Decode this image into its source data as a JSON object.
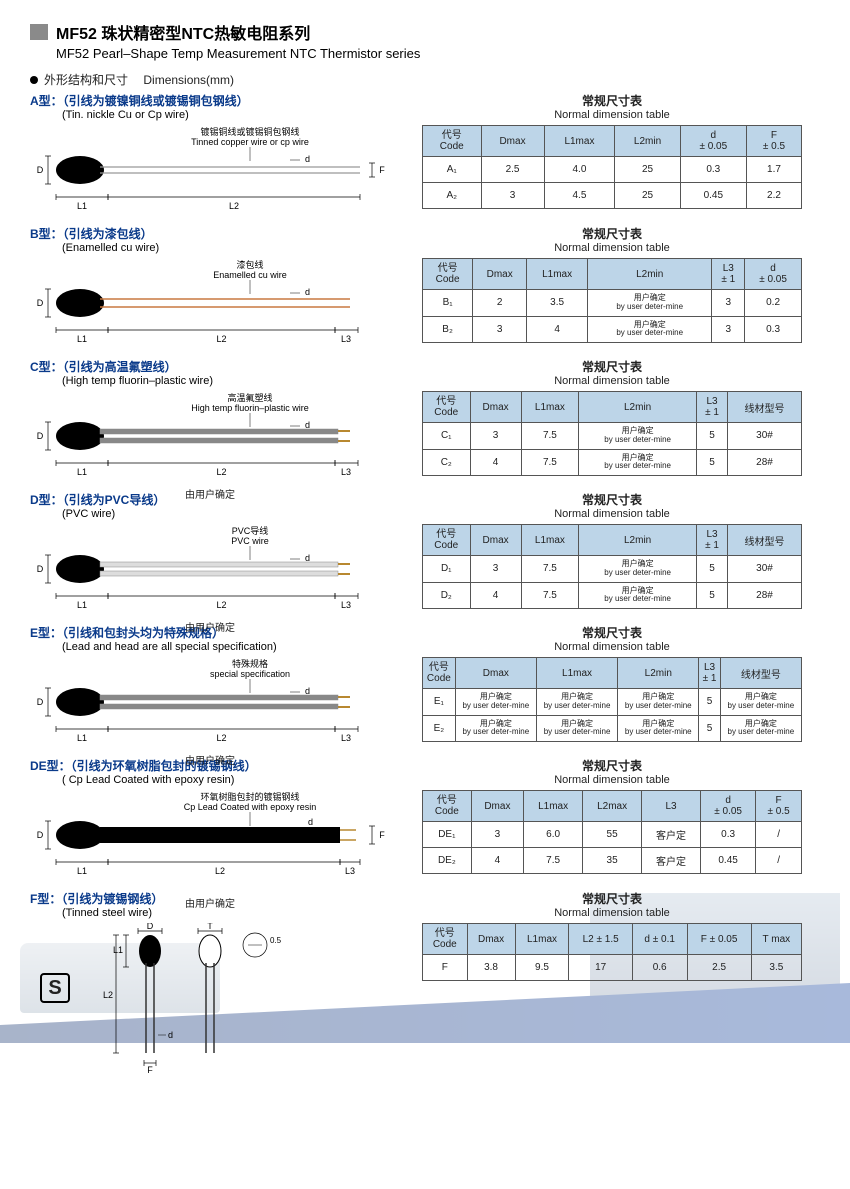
{
  "header": {
    "title_cn": "MF52 珠状精密型NTC热敏电阻系列",
    "title_en": "MF52 Pearl–Shape Temp Measurement NTC Thermistor series",
    "dim_cn": "外形结构和尺寸",
    "dim_en": "Dimensions(mm)"
  },
  "table_title_cn": "常规尺寸表",
  "table_title_en": "Normal dimension table",
  "code_header_cn": "代号",
  "code_header_en": "Code",
  "user_det_cn": "用户确定",
  "user_det_en": "by user deter-mine",
  "by_user_cn": "由用户确定",
  "sections": {
    "A": {
      "type_cn": "A型：（引线为镀镍铜线或镀锡铜包钢线）",
      "type_en": "(Tin. nickle Cu or Cp wire)",
      "wire_cn": "镀锡铜线或镀锡铜包钢线",
      "wire_en": "Tinned copper wire or cp wire",
      "headers": [
        "Dmax",
        "L1max",
        "L2min",
        "d\n± 0.05",
        "F\n± 0.5"
      ],
      "rows": [
        {
          "code": "A₁",
          "v": [
            "2.5",
            "4.0",
            "25",
            "0.3",
            "1.7"
          ]
        },
        {
          "code": "A₂",
          "v": [
            "3",
            "4.5",
            "25",
            "0.45",
            "2.2"
          ]
        }
      ]
    },
    "B": {
      "type_cn": "B型：（引线为漆包线）",
      "type_en": "(Enamelled cu wire)",
      "wire_cn": "漆包线",
      "wire_en": "Enamelled cu wire",
      "headers": [
        "Dmax",
        "L1max",
        "L2min",
        "L3\n± 1",
        "d\n± 0.05"
      ],
      "rows": [
        {
          "code": "B₁",
          "v": [
            "2",
            "3.5",
            "USER",
            "3",
            "0.2"
          ]
        },
        {
          "code": "B₂",
          "v": [
            "3",
            "4",
            "USER",
            "3",
            "0.3"
          ]
        }
      ]
    },
    "C": {
      "type_cn": "C型：（引线为高温氟塑线）",
      "type_en": "(High temp fluorin–plastic wire)",
      "wire_cn": "高温氟塑线",
      "wire_en": "High temp fluorin–plastic wire",
      "headers": [
        "Dmax",
        "L1max",
        "L2min",
        "L3\n± 1",
        "线材型号"
      ],
      "rows": [
        {
          "code": "C₁",
          "v": [
            "3",
            "7.5",
            "USER",
            "5",
            "30#"
          ]
        },
        {
          "code": "C₂",
          "v": [
            "4",
            "7.5",
            "USER",
            "5",
            "28#"
          ]
        }
      ]
    },
    "D": {
      "type_cn": "D型：（引线为PVC导线）",
      "type_en": "(PVC wire)",
      "wire_cn": "PVC导线",
      "wire_en": "PVC  wire",
      "headers": [
        "Dmax",
        "L1max",
        "L2min",
        "L3\n± 1",
        "线材型号"
      ],
      "rows": [
        {
          "code": "D₁",
          "v": [
            "3",
            "7.5",
            "USER",
            "5",
            "30#"
          ]
        },
        {
          "code": "D₂",
          "v": [
            "4",
            "7.5",
            "USER",
            "5",
            "28#"
          ]
        }
      ]
    },
    "E": {
      "type_cn": "E型：（引线和包封头均为特殊规格）",
      "type_en": "(Lead and head are all special specification)",
      "wire_cn": "特殊规格",
      "wire_en": "special specification",
      "headers": [
        "Dmax",
        "L1max",
        "L2min",
        "L3\n± 1",
        "线材型号"
      ],
      "rows": [
        {
          "code": "E₁",
          "v": [
            "USER",
            "USER",
            "USER",
            "5",
            "USER"
          ]
        },
        {
          "code": "E₂",
          "v": [
            "USER",
            "USER",
            "USER",
            "5",
            "USER"
          ]
        }
      ]
    },
    "DE": {
      "type_cn": "DE型：（引线为环氧树脂包封的镀锡钢线）",
      "type_en": "( Cp Lead Coated with epoxy resin)",
      "wire_cn": "环氧树脂包封的镀锡钢线",
      "wire_en": "Cp Lead Coated with epoxy resin",
      "headers": [
        "Dmax",
        "L1max",
        "L2max",
        "L3",
        "d\n± 0.05",
        "F\n± 0.5"
      ],
      "rows": [
        {
          "code": "DE₁",
          "v": [
            "3",
            "6.0",
            "55",
            "客户定",
            "0.3",
            "/"
          ]
        },
        {
          "code": "DE₂",
          "v": [
            "4",
            "7.5",
            "35",
            "客户定",
            "0.45",
            "/"
          ]
        }
      ]
    },
    "F": {
      "type_cn": "F型：（引线为镀锡钢线）",
      "type_en": "(Tinned steel wire)",
      "headers": [
        "Dmax",
        "L1max",
        "L2 ± 1.5",
        "d  ± 0.1",
        "F ± 0.05",
        "T max"
      ],
      "rows": [
        {
          "code": "F",
          "v": [
            "3.8",
            "9.5",
            "17",
            "0.6",
            "2.5",
            "3.5"
          ]
        }
      ]
    }
  },
  "diagram_labels": {
    "D": "D",
    "L1": "L1",
    "L2": "L2",
    "L3": "L3",
    "F": "F",
    "d": "d",
    "T": "T",
    "half": "0.5"
  },
  "colors": {
    "header_bg": "#bdd5e8",
    "border": "#555",
    "title_block": "#8a8a8a",
    "type_label": "#0a3a8a",
    "bead": "#000",
    "wire_a": "#999",
    "wire_b": "#c87840",
    "wire_c": "#888",
    "wire_d": "#ddd",
    "wire_de": "#000",
    "wire_f": "#333"
  }
}
